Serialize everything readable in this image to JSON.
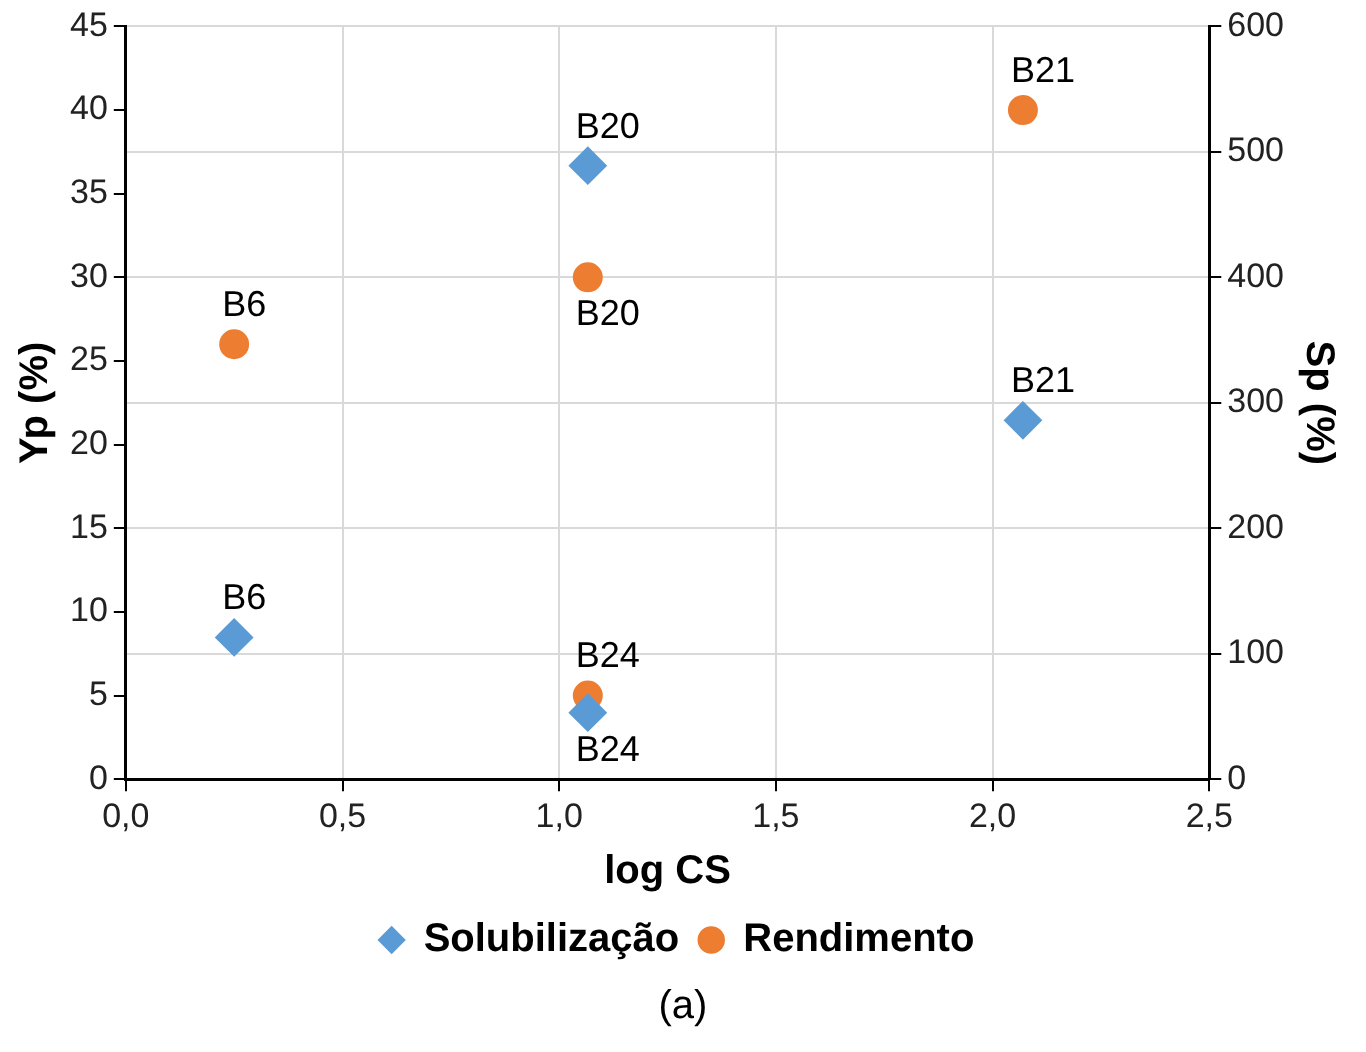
{
  "chart_data": {
    "type": "scatter",
    "xlabel": "log CS",
    "ylabel": "Yp (%)",
    "y2label": "Sp (%)",
    "xlim": [
      0,
      2.5
    ],
    "xticks": [
      {
        "value": 0,
        "label": "0,0"
      },
      {
        "value": 0.5,
        "label": "0,5"
      },
      {
        "value": 1,
        "label": "1,0"
      },
      {
        "value": 1.5,
        "label": "1,5"
      },
      {
        "value": 2,
        "label": "2,0"
      },
      {
        "value": 2.5,
        "label": "2,5"
      }
    ],
    "ylim": [
      0,
      45
    ],
    "yticks": [
      0,
      5,
      10,
      15,
      20,
      25,
      30,
      35,
      40,
      45
    ],
    "y2lim": [
      0,
      600
    ],
    "y2ticks": [
      0,
      100,
      200,
      300,
      400,
      500,
      600
    ],
    "grid": true,
    "legend": "bottom",
    "annotations": [
      "(a)"
    ],
    "series": [
      {
        "name": "Solubilização",
        "color": "#5b9bd5",
        "marker": "diamond",
        "axis": "y2",
        "x": [
          0.25,
          1.066,
          2.07,
          1.066
        ],
        "values": [
          113,
          489,
          286,
          53
        ],
        "value_labels": [
          "B6",
          "B20",
          "B21",
          "B24"
        ]
      },
      {
        "name": "Rendimento",
        "color": "#ed7d31",
        "marker": "circle",
        "x": [
          0.25,
          1.066,
          2.07,
          1.066
        ],
        "values": [
          26,
          30,
          40,
          5
        ],
        "value_labels": [
          "B6",
          "B20",
          "B21",
          "B24"
        ]
      }
    ]
  }
}
